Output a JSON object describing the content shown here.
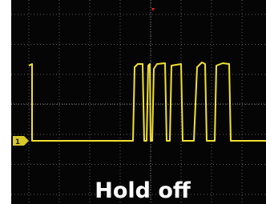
{
  "screen": {
    "channel_marker": "1",
    "caption": "Hold off"
  }
}
